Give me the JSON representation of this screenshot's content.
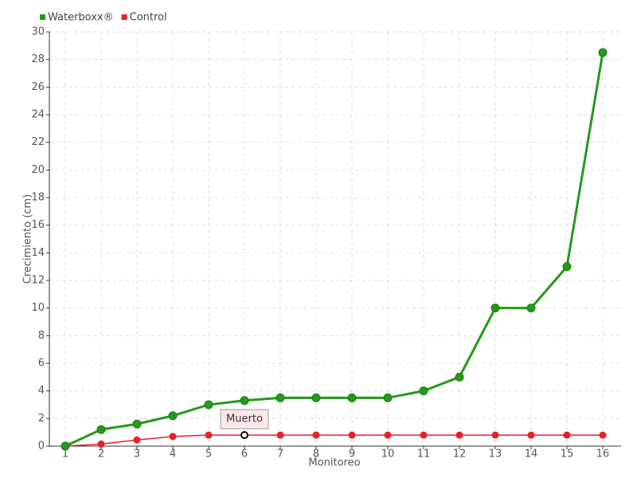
{
  "chart_data": {
    "type": "line",
    "x_label": "Monitoreo",
    "y_label": "Crecimiento (cm)",
    "categories": [
      "1",
      "2",
      "3",
      "4",
      "5",
      "6",
      "7",
      "8",
      "9",
      "10",
      "11",
      "12",
      "13",
      "14",
      "15",
      "16"
    ],
    "series": [
      {
        "name": "Waterboxx®",
        "color": "#259a1a",
        "values": [
          0,
          1.2,
          1.6,
          2.2,
          3.0,
          3.3,
          3.5,
          3.5,
          3.5,
          3.5,
          4.0,
          5.0,
          10.0,
          10.0,
          13.0,
          28.5
        ]
      },
      {
        "name": "Control",
        "color": "#e8202a",
        "values": [
          0,
          0.15,
          0.45,
          0.7,
          0.8,
          0.8,
          0.8,
          0.8,
          0.8,
          0.8,
          0.8,
          0.8,
          0.8,
          0.8,
          0.8,
          0.8
        ]
      }
    ],
    "annotations": [
      {
        "text": "Muerto",
        "series": 1,
        "index": 5
      }
    ],
    "ylim": [
      0,
      30
    ],
    "yticks": [
      0,
      2,
      4,
      6,
      8,
      10,
      12,
      14,
      16,
      18,
      20,
      22,
      24,
      26,
      28,
      30
    ],
    "grid": true,
    "legend": "top-left"
  }
}
